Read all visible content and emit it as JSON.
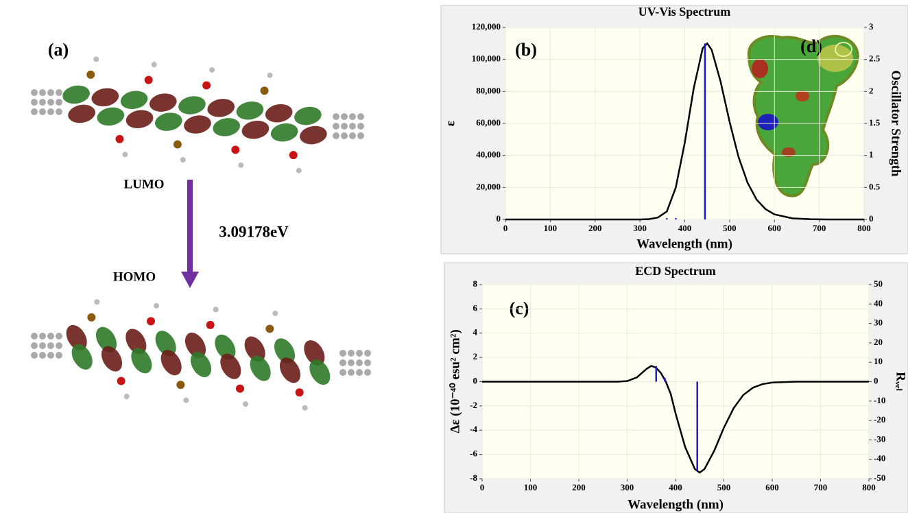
{
  "panel_a": {
    "label": "(a)",
    "lumo": "LUMO",
    "gap": "3.09178eV",
    "homo": "HOMO"
  },
  "chart_data": [
    {
      "type": "line",
      "title": "UV-Vis Spectrum",
      "panel_label": "(b)",
      "inset_label": "(d)",
      "x_label": "Wavelength (nm)",
      "y_label": "ε",
      "y2_label": "Oscillator Strength",
      "xlim": [
        0,
        800
      ],
      "xticks": [
        0,
        100,
        200,
        300,
        400,
        500,
        600,
        700,
        800
      ],
      "ylim": [
        0,
        120000
      ],
      "yticks": [
        0,
        {
          "value": 20000,
          "label": "20,000"
        },
        {
          "value": 40000,
          "label": "40,000"
        },
        {
          "value": 60000,
          "label": "60,000"
        },
        {
          "value": 80000,
          "label": "80,000"
        },
        {
          "value": 100000,
          "label": "100,000"
        },
        {
          "value": 120000,
          "label": "120,000"
        }
      ],
      "y2lim": [
        0,
        3
      ],
      "y2ticks": [
        0,
        0.5,
        1,
        1.5,
        2,
        2.5,
        3
      ],
      "grid": true,
      "series": [
        {
          "style": "line",
          "color": "#000000",
          "x": [
            0,
            100,
            200,
            300,
            320,
            340,
            360,
            380,
            400,
            420,
            440,
            450,
            460,
            480,
            500,
            520,
            540,
            560,
            580,
            600,
            640,
            680,
            720,
            800
          ],
          "values": [
            0,
            0,
            0,
            0,
            200,
            1200,
            5000,
            20000,
            48000,
            82000,
            107000,
            110000,
            106000,
            86000,
            61000,
            39000,
            23000,
            12500,
            6500,
            3200,
            700,
            150,
            0,
            0
          ]
        },
        {
          "style": "stick",
          "color": "#1a1adb",
          "axis": "y2",
          "x": [
            360,
            380,
            445
          ],
          "values": [
            0.02,
            0.02,
            2.75
          ]
        }
      ]
    },
    {
      "type": "line",
      "title": "ECD Spectrum",
      "panel_label": "(c)",
      "x_label": "Wavelength (nm)",
      "y_label": "Δε (10⁻⁴⁰ esu² cm²)",
      "y2_label": "Rᵥₑₗ",
      "xlim": [
        0,
        800
      ],
      "xticks": [
        0,
        100,
        200,
        300,
        400,
        500,
        600,
        700,
        800
      ],
      "ylim": [
        -8,
        8
      ],
      "yticks": [
        -8,
        -6,
        -4,
        -2,
        0,
        2,
        4,
        6,
        8
      ],
      "y2lim": [
        -50,
        50
      ],
      "y2ticks": [
        -50,
        -40,
        -30,
        -20,
        -10,
        0,
        10,
        20,
        30,
        40,
        50
      ],
      "grid": true,
      "series": [
        {
          "style": "line",
          "color": "#000000",
          "x": [
            0,
            100,
            200,
            280,
            300,
            320,
            340,
            350,
            360,
            370,
            380,
            390,
            400,
            420,
            440,
            450,
            460,
            480,
            500,
            520,
            540,
            560,
            580,
            600,
            650,
            700,
            800
          ],
          "values": [
            0,
            0,
            0,
            0,
            0.05,
            0.35,
            1.05,
            1.3,
            1.15,
            0.7,
            0,
            -1.0,
            -2.6,
            -5.4,
            -7.2,
            -7.5,
            -7.2,
            -5.7,
            -3.8,
            -2.2,
            -1.1,
            -0.5,
            -0.2,
            -0.07,
            0,
            0,
            0
          ]
        },
        {
          "style": "stick",
          "color": "#1a1adb",
          "axis": "y2",
          "x": [
            360,
            378,
            445
          ],
          "values": [
            8,
            2,
            -46
          ]
        }
      ]
    }
  ]
}
